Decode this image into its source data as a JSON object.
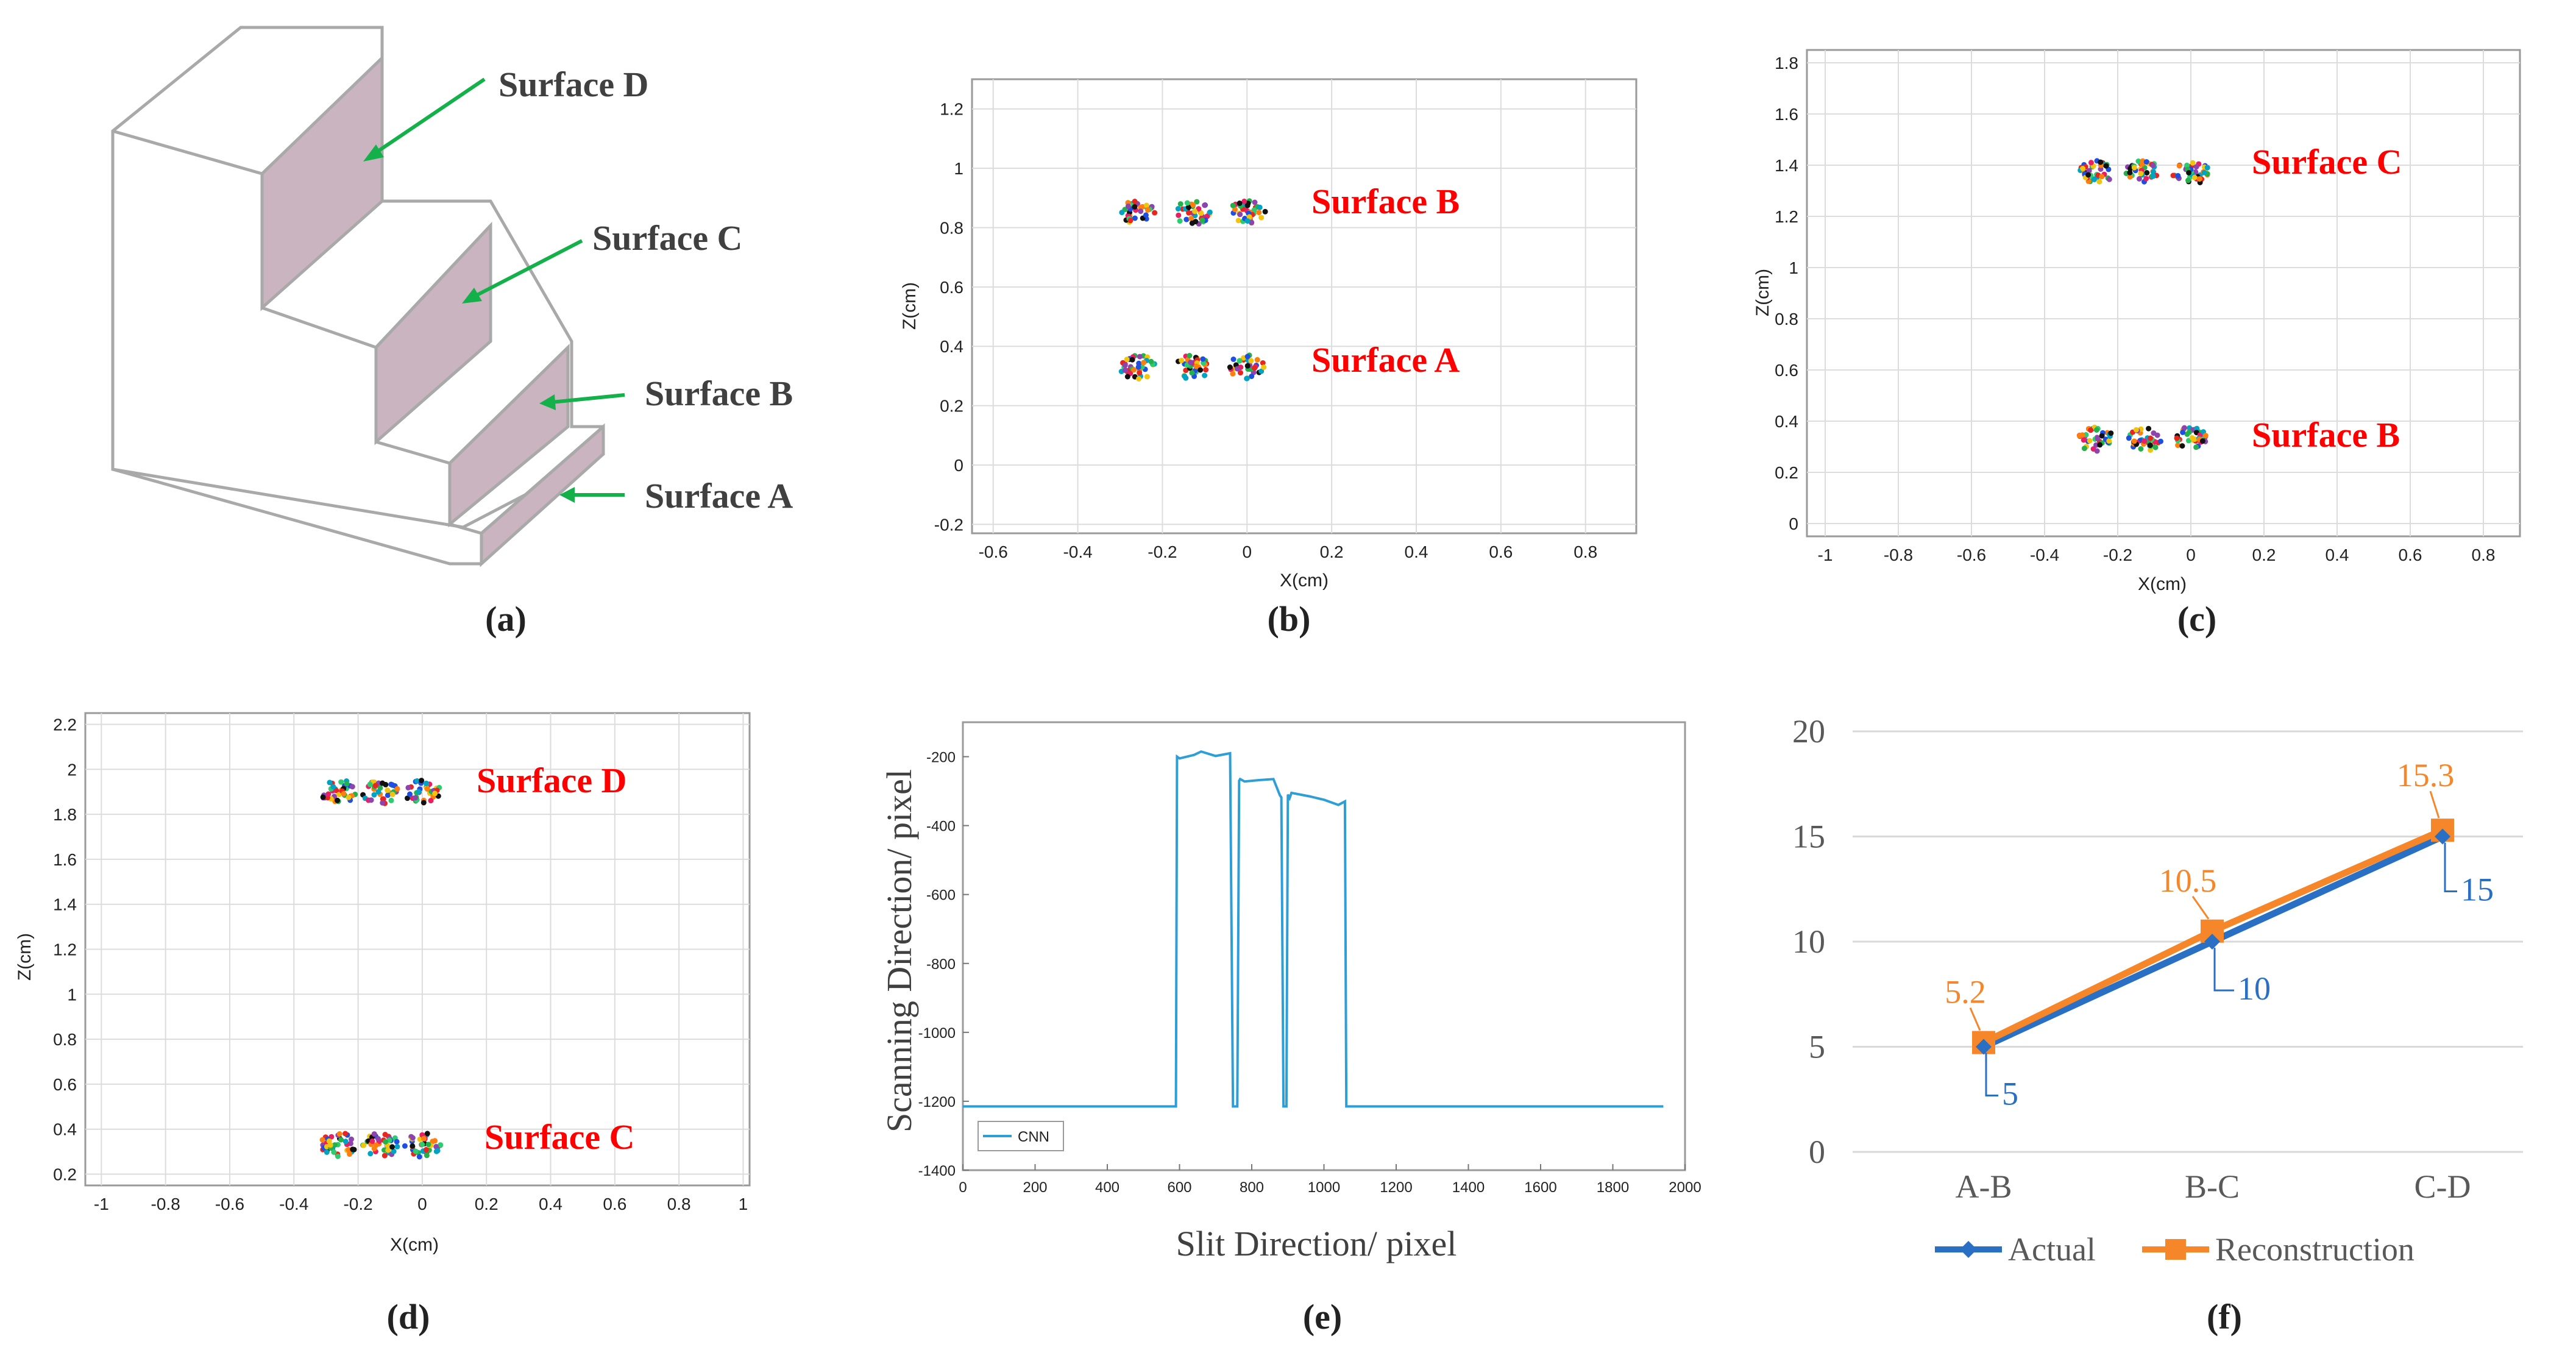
{
  "colors": {
    "surface_label": "#ff0000",
    "arrow": "#14b04a",
    "step_face": "#c9b4c0",
    "step_edge": "#a9a9a9",
    "cnn_line": "#2e9fd6",
    "actual": "#2970c4",
    "reconstruction": "#f5862a",
    "grid": "#dcdcdc"
  },
  "panel_a": {
    "caption": "(a)",
    "labels": [
      "Surface D",
      "Surface C",
      "Surface B",
      "Surface A"
    ]
  },
  "panels_scatter": {
    "b": {
      "caption": "(b)",
      "xlabel": "X(cm)",
      "ylabel": "Z(cm)",
      "xticks": [
        "-0.6",
        "-0.4",
        "-0.2",
        "0",
        "0.2",
        "0.4",
        "0.6",
        "0.8"
      ],
      "yticks": [
        "-0.2",
        "0",
        "0.2",
        "0.4",
        "0.6",
        "0.8",
        "1",
        "1.2"
      ],
      "labels": [
        "Surface B",
        "Surface A"
      ]
    },
    "c": {
      "caption": "(c)",
      "xlabel": "X(cm)",
      "ylabel": "Z(cm)",
      "xticks": [
        "-1",
        "-0.8",
        "-0.6",
        "-0.4",
        "-0.2",
        "0",
        "0.2",
        "0.4",
        "0.6",
        "0.8"
      ],
      "yticks": [
        "0",
        "0.2",
        "0.4",
        "0.6",
        "0.8",
        "1",
        "1.2",
        "1.4",
        "1.6",
        "1.8"
      ],
      "labels": [
        "Surface C",
        "Surface B"
      ]
    },
    "d": {
      "caption": "(d)",
      "xlabel": "X(cm)",
      "ylabel": "Z(cm)",
      "xticks": [
        "-1",
        "-0.8",
        "-0.6",
        "-0.4",
        "-0.2",
        "0",
        "0.2",
        "0.4",
        "0.6",
        "0.8",
        "1"
      ],
      "yticks": [
        "0.2",
        "0.4",
        "0.6",
        "0.8",
        "1",
        "1.2",
        "1.4",
        "1.6",
        "1.8",
        "2",
        "2.2"
      ],
      "labels": [
        "Surface D",
        "Surface C"
      ]
    }
  },
  "panel_e": {
    "caption": "(e)",
    "xlabel": "Slit Direction/ pixel",
    "ylabel": "Scanning Direction/ pixel",
    "xticks": [
      "0",
      "200",
      "400",
      "600",
      "800",
      "1000",
      "1200",
      "1400",
      "1600",
      "1800",
      "2000"
    ],
    "yticks": [
      "-1400",
      "-1200",
      "-1000",
      "-800",
      "-600",
      "-400",
      "-200"
    ],
    "legend": "CNN"
  },
  "panel_f": {
    "caption": "(f)",
    "yticks": [
      "0",
      "5",
      "10",
      "15",
      "20"
    ],
    "legend_actual": "Actual",
    "legend_reconstruction": "Reconstruction",
    "actual_labels": [
      "5",
      "10",
      "15"
    ],
    "reconstruction_labels": [
      "5.2",
      "10.5",
      "15.3"
    ]
  },
  "chart_data": [
    {
      "type": "scatter",
      "panel": "b",
      "xlabel": "X(cm)",
      "ylabel": "Z(cm)",
      "xlim": [
        -0.65,
        0.92
      ],
      "ylim": [
        -0.23,
        1.3
      ],
      "cluster_x": [
        -0.26,
        -0.13,
        0
      ],
      "series": [
        {
          "name": "Surface B",
          "z": 0.85
        },
        {
          "name": "Surface A",
          "z": 0.33
        }
      ]
    },
    {
      "type": "scatter",
      "panel": "c",
      "xlabel": "X(cm)",
      "ylabel": "Z(cm)",
      "xlim": [
        -1.05,
        0.9
      ],
      "ylim": [
        -0.05,
        1.85
      ],
      "cluster_x": [
        -0.26,
        -0.13,
        0
      ],
      "series": [
        {
          "name": "Surface C",
          "z": 1.37
        },
        {
          "name": "Surface B",
          "z": 0.33
        }
      ]
    },
    {
      "type": "scatter",
      "panel": "d",
      "xlabel": "X(cm)",
      "ylabel": "Z(cm)",
      "xlim": [
        -1.05,
        1.02
      ],
      "ylim": [
        0.15,
        2.25
      ],
      "cluster_x": [
        -0.26,
        -0.13,
        0
      ],
      "series": [
        {
          "name": "Surface D",
          "z": 1.9
        },
        {
          "name": "Surface C",
          "z": 0.33
        }
      ]
    },
    {
      "type": "line",
      "panel": "e",
      "xlabel": "Slit Direction/ pixel",
      "ylabel": "Scanning Direction/ pixel",
      "xlim": [
        0,
        2000
      ],
      "ylim": [
        -1400,
        -100
      ],
      "series": [
        {
          "name": "CNN",
          "x": [
            0,
            590,
            593,
            600,
            640,
            660,
            700,
            740,
            748,
            752,
            760,
            765,
            768,
            780,
            820,
            860,
            878,
            882,
            888,
            893,
            896,
            900,
            905,
            910,
            960,
            1000,
            1040,
            1058,
            1062,
            1940
          ],
          "y": [
            -1215,
            -1215,
            -200,
            -205,
            -195,
            -185,
            -198,
            -190,
            -1215,
            -1215,
            -1215,
            -270,
            -265,
            -272,
            -268,
            -265,
            -312,
            -318,
            -1215,
            -1215,
            -1215,
            -310,
            -320,
            -305,
            -315,
            -325,
            -340,
            -330,
            -1215,
            -1215
          ]
        }
      ]
    },
    {
      "type": "line",
      "panel": "f",
      "categories": [
        "A-B",
        "B-C",
        "C-D"
      ],
      "ylim": [
        0,
        20
      ],
      "series": [
        {
          "name": "Actual",
          "values": [
            5,
            10,
            15
          ]
        },
        {
          "name": "Reconstruction",
          "values": [
            5.2,
            10.5,
            15.3
          ]
        }
      ]
    }
  ]
}
